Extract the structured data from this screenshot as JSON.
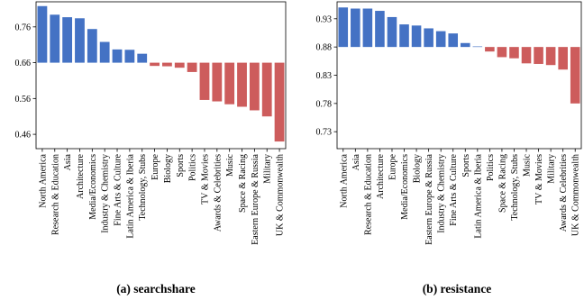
{
  "colors": {
    "positive": "#4472C4",
    "negative": "#CD5C5C"
  },
  "chart_data": [
    {
      "type": "bar",
      "caption": "(a) searchshare",
      "baseline": 0.66,
      "ylim": [
        0.42,
        0.83
      ],
      "yticks": [
        0.46,
        0.56,
        0.66,
        0.76
      ],
      "ytick_labels": [
        "0.46",
        "0.56",
        "0.66",
        "0.76"
      ],
      "categories": [
        "North America",
        "Research & Education",
        "Asia",
        "Architecture",
        "Media/Economics",
        "Industry & Chemistry",
        "Fine Arts & Culture",
        "Latin America & Iberia",
        "Technology, Stubs",
        "Europe",
        "Biology",
        "Sports",
        "Politics",
        "TV & Movies",
        "Awards & Celebrities",
        "Music",
        "Space & Racing",
        "Eastern Europe & Russia",
        "Military",
        "UK & Commonwealth"
      ],
      "values": [
        0.818,
        0.794,
        0.787,
        0.784,
        0.754,
        0.718,
        0.697,
        0.696,
        0.685,
        0.651,
        0.65,
        0.646,
        0.634,
        0.556,
        0.552,
        0.544,
        0.537,
        0.527,
        0.51,
        0.44
      ]
    },
    {
      "type": "bar",
      "caption": "(b) resistance",
      "baseline": 0.88,
      "ylim": [
        0.7,
        0.96
      ],
      "yticks": [
        0.73,
        0.78,
        0.83,
        0.88,
        0.93
      ],
      "ytick_labels": [
        "0.73",
        "0.78",
        "0.83",
        "0.88",
        "0.93"
      ],
      "categories": [
        "North America",
        "Asia",
        "Research & Education",
        "Architecture",
        "Europe",
        "Media/Economics",
        "Biology",
        "Eastern Europe & Russia",
        "Industry & Chemistry",
        "Fine Arts & Culture",
        "Sports",
        "Latin America & Iberia",
        "Politics",
        "Space & Racing",
        "Technology, Stubs",
        "Music",
        "TV & Movies",
        "Military",
        "Awards & Celebrities",
        "UK & Commonwealth"
      ],
      "values": [
        0.95,
        0.948,
        0.948,
        0.944,
        0.933,
        0.92,
        0.918,
        0.913,
        0.908,
        0.904,
        0.887,
        0.881,
        0.872,
        0.862,
        0.86,
        0.851,
        0.85,
        0.848,
        0.84,
        0.78
      ]
    }
  ]
}
